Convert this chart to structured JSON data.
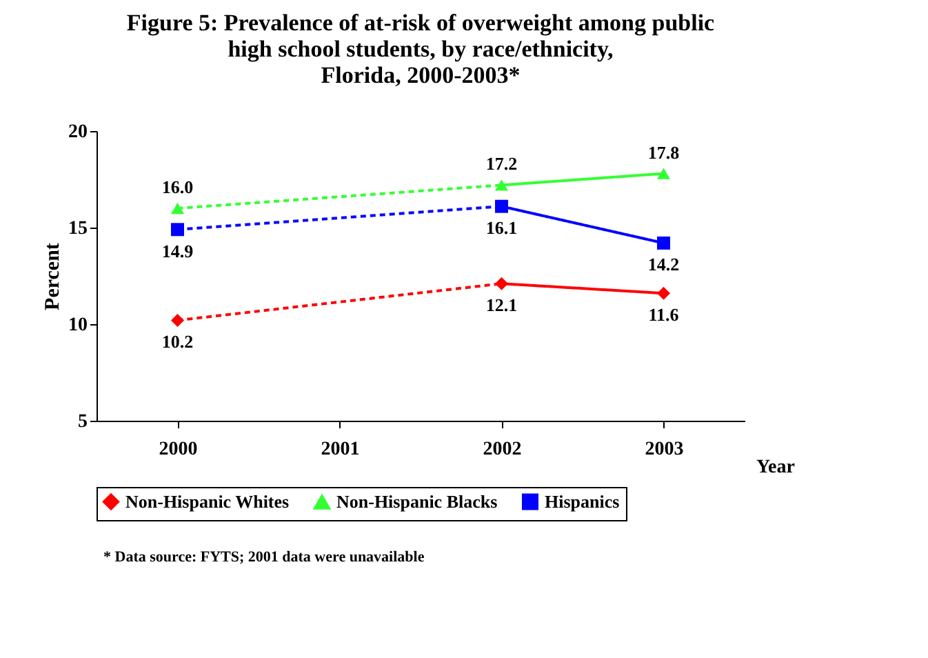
{
  "chart_data": {
    "type": "line",
    "title": "Figure 5: Prevalence of at-risk of overweight among public\nhigh school students, by race/ethnicity,\nFlorida, 2000-2003*",
    "xlabel": "Year",
    "ylabel": "Percent",
    "categories": [
      "2000",
      "2001",
      "2002",
      "2003"
    ],
    "ylim": [
      5,
      20
    ],
    "yticks": [
      5,
      10,
      15,
      20
    ],
    "grid": false,
    "legend": "bottom",
    "line_style": "dashed",
    "series": [
      {
        "name": "Non-Hispanic Whites",
        "color": "#ff0000",
        "marker": "diamond",
        "values": [
          10.2,
          null,
          12.1,
          11.6
        ],
        "value_labels": [
          "10.2",
          null,
          "12.1",
          "11.6"
        ]
      },
      {
        "name": "Non-Hispanic Blacks",
        "color": "#33ff33",
        "marker": "triangle",
        "values": [
          16.0,
          null,
          17.2,
          17.8
        ],
        "value_labels": [
          "16.0",
          null,
          "17.2",
          "17.8"
        ]
      },
      {
        "name": "Hispanics",
        "color": "#0000ff",
        "marker": "square",
        "values": [
          14.9,
          null,
          16.1,
          14.2
        ],
        "value_labels": [
          "14.9",
          null,
          "16.1",
          "14.2"
        ]
      }
    ],
    "annotations": [
      "* Data source: FYTS; 2001 data were unavailable"
    ]
  }
}
